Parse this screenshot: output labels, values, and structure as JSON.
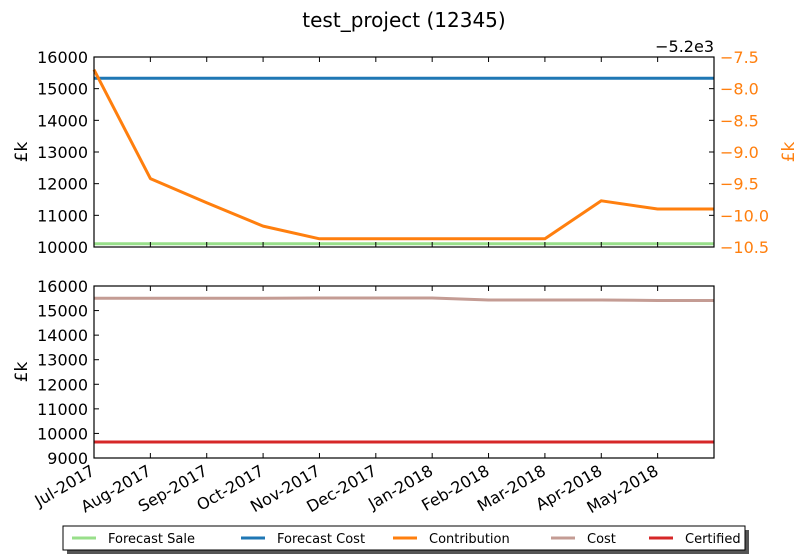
{
  "title": "test_project (12345)",
  "chart_data": [
    {
      "type": "line",
      "ylabel": "£k",
      "y2label": "£k",
      "ylim": [
        10000,
        16000
      ],
      "yticks": [
        "10000",
        "11000",
        "12000",
        "13000",
        "14000",
        "15000",
        "16000"
      ],
      "y2lim": [
        -10.5,
        -7.5
      ],
      "y2ticks": [
        "−10.5",
        "−10.0",
        "−9.5",
        "−9.0",
        "−8.5",
        "−8.0",
        "−7.5"
      ],
      "y2offset": "−5.2e3",
      "series": [
        {
          "name": "Forecast Sale",
          "axis": "left",
          "color": "#98df8a",
          "x": [
            0,
            11
          ],
          "values": [
            10100,
            10100
          ]
        },
        {
          "name": "Forecast Cost",
          "axis": "left",
          "color": "#1f77b4",
          "x": [
            0,
            11
          ],
          "values": [
            15330,
            15330
          ]
        },
        {
          "name": "Contribution",
          "axis": "right",
          "color": "#ff7f0e",
          "x": [
            0,
            1,
            2,
            3,
            4,
            5,
            6,
            7,
            8,
            9,
            10,
            11
          ],
          "values": [
            -7.7,
            -9.42,
            -9.8,
            -10.17,
            -10.37,
            -10.37,
            -10.37,
            -10.37,
            -10.37,
            -9.77,
            -9.9,
            -9.9
          ]
        }
      ]
    },
    {
      "type": "line",
      "ylabel": "£k",
      "ylim": [
        9000,
        16000
      ],
      "yticks": [
        "9000",
        "10000",
        "11000",
        "12000",
        "13000",
        "14000",
        "15000",
        "16000"
      ],
      "xticks": [
        "Jul-2017",
        "Aug-2017",
        "Sep-2017",
        "Oct-2017",
        "Nov-2017",
        "Dec-2017",
        "Jan-2018",
        "Feb-2018",
        "Mar-2018",
        "Apr-2018",
        "May-2018"
      ],
      "series": [
        {
          "name": "Cost",
          "color": "#c49c94",
          "x": [
            0,
            1,
            2,
            3,
            4,
            5,
            6,
            7,
            8,
            9,
            10,
            11
          ],
          "values": [
            15500,
            15500,
            15500,
            15500,
            15510,
            15510,
            15510,
            15430,
            15430,
            15430,
            15410,
            15410
          ]
        },
        {
          "name": "Certified",
          "color": "#d62728",
          "x": [
            0,
            11
          ],
          "values": [
            9650,
            9650
          ]
        }
      ]
    }
  ],
  "legend": {
    "position": "bottom",
    "items": [
      {
        "label": "Forecast Sale",
        "color": "#98df8a"
      },
      {
        "label": "Forecast Cost",
        "color": "#1f77b4"
      },
      {
        "label": "Contribution",
        "color": "#ff7f0e"
      },
      {
        "label": "Cost",
        "color": "#c49c94"
      },
      {
        "label": "Certified",
        "color": "#d62728"
      }
    ]
  }
}
